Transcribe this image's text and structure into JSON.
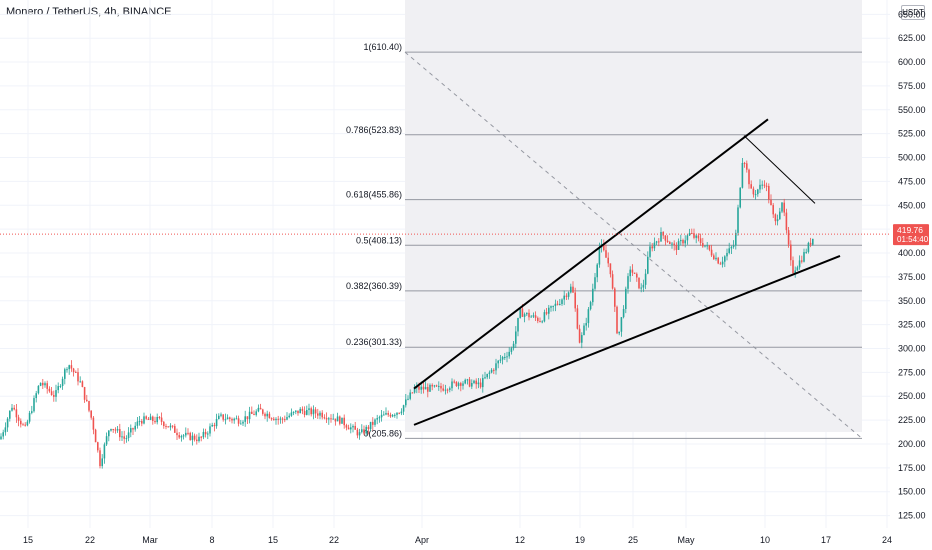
{
  "header": {
    "title": "Monero / TetherUS, 4h, BINANCE",
    "currency_button": "USDT"
  },
  "colors": {
    "up": "#26a69a",
    "down": "#ef5350",
    "grid": "#f0f3fa",
    "fib_zone": "#f0f0f3",
    "fib_line": "#9598a1",
    "price_tag": "#ef5350",
    "trend_line": "#000000"
  },
  "price_tag": {
    "price": "419.76",
    "countdown": "01:54:40"
  },
  "chart_data": {
    "type": "candlestick",
    "title": "Monero / TetherUS, 4h, BINANCE",
    "x_ticks": [
      "15",
      "22",
      "Mar",
      "8",
      "15",
      "22",
      "Apr",
      "12",
      "19",
      "25",
      "May",
      "10",
      "17",
      "24"
    ],
    "y_ticks": [
      125,
      150,
      175,
      200,
      225,
      250,
      275,
      300,
      325,
      350,
      375,
      400,
      425,
      450,
      475,
      500,
      525,
      550,
      575,
      600,
      625,
      650
    ],
    "ylim": [
      112,
      665
    ],
    "grid": true,
    "current_price": 419.76,
    "fibonacci": [
      {
        "label": "1(610.40)",
        "value": 610.4
      },
      {
        "label": "0.786(523.83)",
        "value": 523.83
      },
      {
        "label": "0.618(455.86)",
        "value": 455.86
      },
      {
        "label": "0.5(408.13)",
        "value": 408.13
      },
      {
        "label": "0.382(360.39)",
        "value": 360.39
      },
      {
        "label": "0.236(301.33)",
        "value": 301.33
      },
      {
        "label": "0(205.86)",
        "value": 205.86
      }
    ],
    "price_path": [
      [
        0,
        205
      ],
      [
        12,
        240
      ],
      [
        25,
        215
      ],
      [
        40,
        265
      ],
      [
        55,
        250
      ],
      [
        68,
        285
      ],
      [
        80,
        265
      ],
      [
        92,
        225
      ],
      [
        100,
        180
      ],
      [
        110,
        220
      ],
      [
        125,
        205
      ],
      [
        140,
        225
      ],
      [
        160,
        225
      ],
      [
        180,
        210
      ],
      [
        200,
        205
      ],
      [
        220,
        228
      ],
      [
        240,
        225
      ],
      [
        260,
        235
      ],
      [
        280,
        225
      ],
      [
        300,
        235
      ],
      [
        320,
        232
      ],
      [
        340,
        225
      ],
      [
        360,
        210
      ],
      [
        380,
        228
      ],
      [
        400,
        235
      ],
      [
        415,
        258
      ],
      [
        440,
        258
      ],
      [
        460,
        265
      ],
      [
        480,
        262
      ],
      [
        500,
        288
      ],
      [
        512,
        300
      ],
      [
        520,
        338
      ],
      [
        540,
        330
      ],
      [
        560,
        350
      ],
      [
        572,
        365
      ],
      [
        580,
        305
      ],
      [
        590,
        345
      ],
      [
        600,
        410
      ],
      [
        610,
        385
      ],
      [
        618,
        310
      ],
      [
        630,
        385
      ],
      [
        642,
        360
      ],
      [
        650,
        405
      ],
      [
        662,
        420
      ],
      [
        675,
        405
      ],
      [
        690,
        420
      ],
      [
        705,
        408
      ],
      [
        720,
        390
      ],
      [
        735,
        410
      ],
      [
        743,
        505
      ],
      [
        752,
        460
      ],
      [
        765,
        475
      ],
      [
        775,
        430
      ],
      [
        782,
        455
      ],
      [
        792,
        380
      ],
      [
        802,
        395
      ],
      [
        815,
        420
      ]
    ],
    "trend_lines": [
      {
        "from": [
          "Apr",
          258
        ],
        "to": [
          "May 10",
          540
        ]
      },
      {
        "from": [
          "Apr",
          220
        ],
        "to": [
          "May 17",
          397
        ]
      },
      {
        "from": [
          "May 9",
          523
        ],
        "to": [
          "May 15",
          452
        ]
      }
    ]
  }
}
